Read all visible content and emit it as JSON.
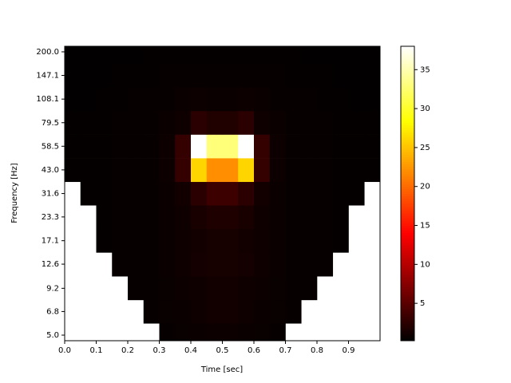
{
  "chart_data": {
    "type": "heatmap",
    "colormap": "hot",
    "xlabel": "Time [sec]",
    "ylabel": "Frequency [Hz]",
    "xlim": [
      0,
      1.0
    ],
    "xticks": [
      {
        "value": 0,
        "label": "0.0"
      },
      0.1,
      0.2,
      0.3,
      0.4,
      0.5,
      0.6,
      0.7,
      0.8,
      0.9
    ],
    "ylog": true,
    "ylim": [
      4.65,
      215
    ],
    "yticks": [
      {
        "value": 5,
        "label": "5.0"
      },
      6.8,
      9.2,
      12.6,
      17.1,
      23.3,
      31.6,
      {
        "value": 43,
        "label": "43.0"
      },
      58.5,
      79.5,
      108.1,
      147.1,
      {
        "value": 200,
        "label": "200.0"
      }
    ],
    "clim": [
      0.2,
      38
    ],
    "cticks": [
      5,
      10,
      15,
      20,
      25,
      30,
      35
    ],
    "x_bins": [
      0,
      0.05,
      0.1,
      0.15,
      0.2,
      0.25,
      0.3,
      0.35,
      0.4,
      0.45,
      0.5,
      0.55,
      0.6,
      0.65,
      0.7,
      0.75,
      0.8,
      0.85,
      0.9,
      0.95,
      1.0
    ],
    "y": [
      5,
      6.8,
      9.2,
      12.6,
      17.1,
      23.3,
      31.6,
      43,
      58.5,
      79.5,
      108.1,
      147.1,
      200
    ],
    "z": [
      [
        null,
        null,
        null,
        null,
        null,
        null,
        0.6,
        0.7,
        0.8,
        0.9,
        0.9,
        0.8,
        0.7,
        0.6,
        null,
        null,
        null,
        null,
        null,
        null
      ],
      [
        null,
        null,
        null,
        null,
        null,
        0.6,
        0.7,
        0.8,
        1.0,
        1.2,
        1.2,
        1.0,
        0.8,
        0.7,
        0.6,
        null,
        null,
        null,
        null,
        null
      ],
      [
        null,
        null,
        null,
        null,
        0.5,
        0.6,
        0.7,
        0.9,
        1.0,
        1.2,
        1.2,
        1.0,
        0.9,
        0.7,
        0.6,
        0.5,
        null,
        null,
        null,
        null
      ],
      [
        null,
        null,
        null,
        0.5,
        0.5,
        0.6,
        0.8,
        1.0,
        1.3,
        1.4,
        1.4,
        1.3,
        1.0,
        0.8,
        0.6,
        0.5,
        0.5,
        null,
        null,
        null
      ],
      [
        null,
        null,
        0.4,
        0.5,
        0.5,
        0.6,
        0.8,
        1.0,
        1.2,
        1.4,
        1.4,
        1.2,
        1.0,
        0.8,
        0.6,
        0.5,
        0.5,
        0.4,
        null,
        null
      ],
      [
        null,
        null,
        0.4,
        0.5,
        0.5,
        0.6,
        0.8,
        1.0,
        1.5,
        1.8,
        1.8,
        1.5,
        1.0,
        0.8,
        0.6,
        0.5,
        0.5,
        0.4,
        null,
        null
      ],
      [
        null,
        0.4,
        0.4,
        0.5,
        0.5,
        0.6,
        0.8,
        1.2,
        2.5,
        3.5,
        3.5,
        2.5,
        1.2,
        0.8,
        0.6,
        0.5,
        0.5,
        0.4,
        0.4,
        null
      ],
      [
        0.4,
        0.4,
        0.4,
        0.5,
        0.5,
        0.6,
        0.9,
        3.0,
        26,
        22,
        22,
        26,
        3.0,
        0.9,
        0.6,
        0.5,
        0.5,
        0.4,
        0.4,
        0.4
      ],
      [
        0.4,
        0.4,
        0.4,
        0.5,
        0.5,
        0.6,
        0.9,
        3.0,
        38,
        33,
        33,
        38,
        3.0,
        0.9,
        0.6,
        0.5,
        0.5,
        0.4,
        0.4,
        0.4
      ],
      [
        0.4,
        0.4,
        0.4,
        0.5,
        0.5,
        0.6,
        0.8,
        1.0,
        2.5,
        2.0,
        2.0,
        2.5,
        1.0,
        0.8,
        0.6,
        0.5,
        0.5,
        0.4,
        0.4,
        0.4
      ],
      [
        0.3,
        0.3,
        0.4,
        0.4,
        0.5,
        0.5,
        0.6,
        0.8,
        0.9,
        0.8,
        0.8,
        0.9,
        0.8,
        0.6,
        0.5,
        0.5,
        0.4,
        0.4,
        0.3,
        0.3
      ],
      [
        0.3,
        0.3,
        0.3,
        0.4,
        0.4,
        0.4,
        0.5,
        0.5,
        0.6,
        0.5,
        0.5,
        0.6,
        0.5,
        0.5,
        0.4,
        0.4,
        0.4,
        0.3,
        0.3,
        0.3
      ],
      [
        0.3,
        0.3,
        0.3,
        0.3,
        0.3,
        0.4,
        0.4,
        0.4,
        0.4,
        0.4,
        0.4,
        0.4,
        0.4,
        0.4,
        0.4,
        0.3,
        0.3,
        0.3,
        0.3,
        0.3
      ]
    ]
  }
}
